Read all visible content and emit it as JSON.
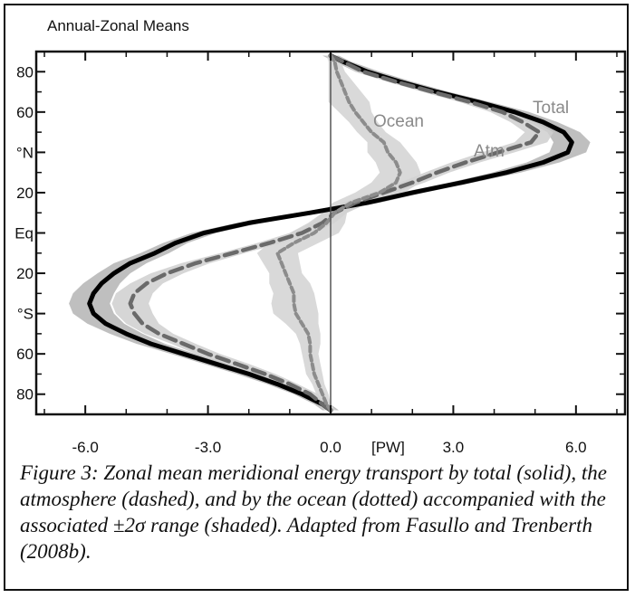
{
  "chart_data": {
    "type": "line",
    "title": "Annual-Zonal Means",
    "xlabel": "[PW]",
    "ylabel": "",
    "xlim": [
      -7.2,
      7.2
    ],
    "ylim": [
      -90,
      90
    ],
    "x_ticks": [
      -6.0,
      -3.0,
      0.0,
      3.0,
      6.0
    ],
    "x_tick_labels": [
      "-6.0",
      "-3.0",
      "0.0",
      "3.0",
      "6.0"
    ],
    "y_ticks": [
      80,
      60,
      40,
      20,
      0,
      -20,
      -40,
      -60,
      -80
    ],
    "y_tick_labels": [
      "80",
      "60",
      "°N",
      "20",
      "Eq",
      "20",
      "°S",
      "60",
      "80"
    ],
    "grid": false,
    "latitude": [
      88,
      85,
      80,
      75,
      70,
      65,
      60,
      55,
      50,
      45,
      40,
      35,
      30,
      25,
      20,
      15,
      10,
      5,
      0,
      -5,
      -10,
      -15,
      -20,
      -25,
      -30,
      -35,
      -40,
      -45,
      -50,
      -55,
      -60,
      -65,
      -70,
      -75,
      -80,
      -85,
      -88
    ],
    "series": [
      {
        "name": "Total",
        "style": "solid",
        "color": "#000000",
        "values": [
          0.0,
          0.3,
          0.9,
          1.7,
          2.6,
          3.6,
          4.5,
          5.2,
          5.7,
          5.9,
          5.8,
          5.2,
          4.3,
          3.2,
          2.0,
          0.9,
          -0.5,
          -2.0,
          -3.1,
          -3.8,
          -4.3,
          -4.9,
          -5.3,
          -5.6,
          -5.8,
          -5.9,
          -5.8,
          -5.5,
          -5.0,
          -4.4,
          -3.6,
          -2.8,
          -2.0,
          -1.3,
          -0.7,
          -0.2,
          0.0
        ],
        "band": [
          0.2,
          0.2,
          0.3,
          0.3,
          0.3,
          0.3,
          0.35,
          0.35,
          0.4,
          0.45,
          0.45,
          0.4,
          0.35,
          0.3,
          0.3,
          0.3,
          0.3,
          0.3,
          0.3,
          0.3,
          0.35,
          0.4,
          0.4,
          0.45,
          0.5,
          0.5,
          0.5,
          0.45,
          0.4,
          0.35,
          0.3,
          0.3,
          0.3,
          0.25,
          0.2,
          0.2,
          0.2
        ]
      },
      {
        "name": "Atm",
        "style": "dashed",
        "color": "#6a6a6a",
        "values": [
          0.0,
          0.3,
          0.8,
          1.6,
          2.5,
          3.4,
          4.2,
          4.7,
          5.1,
          4.9,
          4.1,
          3.3,
          2.6,
          2.0,
          1.3,
          0.6,
          0.1,
          -0.2,
          -0.7,
          -1.5,
          -2.4,
          -3.3,
          -4.0,
          -4.5,
          -4.8,
          -4.9,
          -4.8,
          -4.6,
          -4.2,
          -3.6,
          -3.0,
          -2.3,
          -1.6,
          -1.0,
          -0.5,
          -0.2,
          0.0
        ],
        "band": [
          0.15,
          0.15,
          0.2,
          0.2,
          0.25,
          0.25,
          0.3,
          0.3,
          0.35,
          0.4,
          0.4,
          0.35,
          0.3,
          0.3,
          0.3,
          0.3,
          0.3,
          0.3,
          0.3,
          0.3,
          0.3,
          0.35,
          0.4,
          0.4,
          0.45,
          0.45,
          0.45,
          0.4,
          0.35,
          0.3,
          0.3,
          0.3,
          0.25,
          0.2,
          0.2,
          0.15,
          0.15
        ]
      },
      {
        "name": "Ocean",
        "style": "dotted",
        "color": "#8c8c8c",
        "values": [
          0.0,
          0.1,
          0.15,
          0.25,
          0.35,
          0.45,
          0.6,
          0.8,
          1.0,
          1.3,
          1.4,
          1.6,
          1.7,
          1.6,
          1.2,
          0.5,
          0.1,
          -0.1,
          -0.4,
          -0.9,
          -1.3,
          -1.2,
          -1.1,
          -1.0,
          -0.9,
          -0.9,
          -0.85,
          -0.7,
          -0.55,
          -0.5,
          -0.5,
          -0.45,
          -0.4,
          -0.3,
          -0.2,
          -0.1,
          0.0
        ],
        "band": [
          0.1,
          0.15,
          0.2,
          0.3,
          0.4,
          0.5,
          0.4,
          0.35,
          0.35,
          0.4,
          0.5,
          0.5,
          0.5,
          0.6,
          0.6,
          0.45,
          0.3,
          0.45,
          0.6,
          0.6,
          0.5,
          0.45,
          0.4,
          0.5,
          0.5,
          0.55,
          0.55,
          0.4,
          0.3,
          0.25,
          0.2,
          0.2,
          0.2,
          0.15,
          0.15,
          0.1,
          0.1
        ]
      }
    ]
  },
  "caption": "Figure 3: Zonal mean meridional energy transport by total (solid), the atmosphere (dashed), and by the ocean (dotted) accompanied with the associated ±2σ range (shaded). Adapted from Fasullo and Trenberth (2008b)."
}
